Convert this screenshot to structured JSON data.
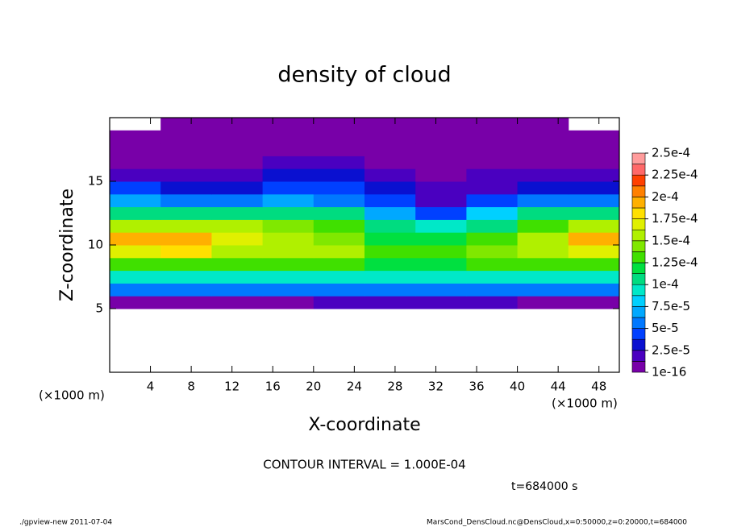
{
  "chart_data": {
    "type": "heatmap",
    "title": "density of cloud",
    "x_label": "X-coordinate",
    "y_label": "Z-coordinate",
    "x_unit_left": "(×1000 m)",
    "x_unit_right": "(×1000 m)",
    "contour_note": "CONTOUR INTERVAL = 1.000E-04",
    "time_label": "t=684000 s",
    "footer_left": "./gpview-new  2011-07-04",
    "footer_right": "MarsCond_DensCloud.nc@DensCloud,x=0:50000,z=0:20000,t=684000",
    "xlim": [
      0,
      50
    ],
    "xticks": [
      4,
      8,
      12,
      16,
      20,
      24,
      28,
      32,
      36,
      40,
      44,
      48
    ],
    "ylim": [
      0,
      20
    ],
    "yticks": [
      5,
      10,
      15
    ],
    "x": [
      2.5,
      7.5,
      12.5,
      17.5,
      22.5,
      27.5,
      32.5,
      37.5,
      42.5,
      47.5
    ],
    "z": [
      0.5,
      1.5,
      2.5,
      3.5,
      4.5,
      5.5,
      6.5,
      7.5,
      8.5,
      9.5,
      10.5,
      11.5,
      12.5,
      13.5,
      14.5,
      15.5,
      16.5,
      17.5,
      18.5,
      19.5
    ],
    "values": [
      [
        null,
        null,
        null,
        null,
        null,
        null,
        null,
        null,
        null,
        null
      ],
      [
        null,
        null,
        null,
        null,
        null,
        null,
        null,
        null,
        null,
        null
      ],
      [
        null,
        null,
        null,
        null,
        null,
        null,
        null,
        null,
        null,
        null
      ],
      [
        null,
        null,
        null,
        null,
        null,
        null,
        null,
        null,
        null,
        null
      ],
      [
        null,
        null,
        null,
        null,
        null,
        null,
        null,
        null,
        null,
        null
      ],
      [
        1e-05,
        1e-05,
        1e-05,
        1e-05,
        1.5e-05,
        2e-05,
        2e-05,
        1.5e-05,
        1e-05,
        1e-05
      ],
      [
        5e-05,
        5e-05,
        5e-05,
        5e-05,
        5e-05,
        5e-05,
        5e-05,
        5e-05,
        5e-05,
        5e-05
      ],
      [
        9e-05,
        9e-05,
        9e-05,
        9e-05,
        9e-05,
        9e-05,
        9e-05,
        9e-05,
        9e-05,
        9e-05
      ],
      [
        0.00013,
        0.00013,
        0.00013,
        0.00013,
        0.00013,
        0.00012,
        0.00012,
        0.00013,
        0.00013,
        0.00013
      ],
      [
        0.00017,
        0.00018,
        0.00016,
        0.00016,
        0.00015,
        0.00013,
        0.00013,
        0.00014,
        0.00016,
        0.00017
      ],
      [
        0.00019,
        0.00019,
        0.00017,
        0.00015,
        0.00014,
        0.00012,
        0.00012,
        0.00013,
        0.00016,
        0.00019
      ],
      [
        0.00016,
        0.00016,
        0.00015,
        0.00014,
        0.00013,
        0.00011,
        9e-05,
        0.00011,
        0.00013,
        0.00015
      ],
      [
        0.00011,
        0.00011,
        0.00011,
        0.00011,
        0.0001,
        7e-05,
        4e-05,
        8e-05,
        0.0001,
        0.0001
      ],
      [
        7e-05,
        6e-05,
        6e-05,
        7e-05,
        6e-05,
        4e-05,
        2e-05,
        4e-05,
        6e-05,
        6e-05
      ],
      [
        4e-05,
        3e-05,
        3e-05,
        4e-05,
        4e-05,
        3e-05,
        1.5e-05,
        2e-05,
        3e-05,
        3e-05
      ],
      [
        2e-05,
        2e-05,
        2e-05,
        2.5e-05,
        2.5e-05,
        2e-05,
        1e-05,
        1.5e-05,
        2e-05,
        2e-05
      ],
      [
        1e-05,
        1e-05,
        1e-05,
        1.5e-05,
        1.5e-05,
        1e-05,
        8e-06,
        1e-05,
        1e-05,
        1e-05
      ],
      [
        5e-06,
        5e-06,
        5e-06,
        5e-06,
        5e-06,
        5e-06,
        5e-06,
        5e-06,
        5e-06,
        5e-06
      ],
      [
        3e-06,
        3e-06,
        3e-06,
        3e-06,
        3e-06,
        3e-06,
        3e-06,
        3e-06,
        3e-06,
        3e-06
      ],
      [
        null,
        3e-06,
        3e-06,
        3e-06,
        3e-06,
        3e-06,
        3e-06,
        3e-06,
        3e-06,
        null
      ]
    ],
    "colorbar_ticks": [
      1e-16,
      {
        "value": 2.5e-05,
        "label": "2.5e-5"
      },
      {
        "value": 5e-05,
        "label": "5e-5"
      },
      {
        "value": 7.5e-05,
        "label": "7.5e-5"
      },
      {
        "value": 0.0001,
        "label": "1e-4"
      },
      {
        "value": 0.000125,
        "label": "1.25e-4"
      },
      {
        "value": 0.00015,
        "label": "1.5e-4"
      },
      {
        "value": 0.000175,
        "label": "1.75e-4"
      },
      {
        "value": 0.0002,
        "label": "2e-4"
      },
      {
        "value": 0.000225,
        "label": "2.25e-4"
      },
      {
        "value": 0.00025,
        "label": "2.5e-4"
      }
    ],
    "colors": [
      "#7800a8",
      "#4a00c0",
      "#0a10d0",
      "#0040ff",
      "#0078ff",
      "#00a8ff",
      "#00d0ff",
      "#00e8c8",
      "#00dc80",
      "#00e040",
      "#40e000",
      "#80e800",
      "#b0f000",
      "#e0f000",
      "#ffe000",
      "#ffb000",
      "#ff8000",
      "#ff4000",
      "#ff6868",
      "#ff9c9c"
    ]
  }
}
